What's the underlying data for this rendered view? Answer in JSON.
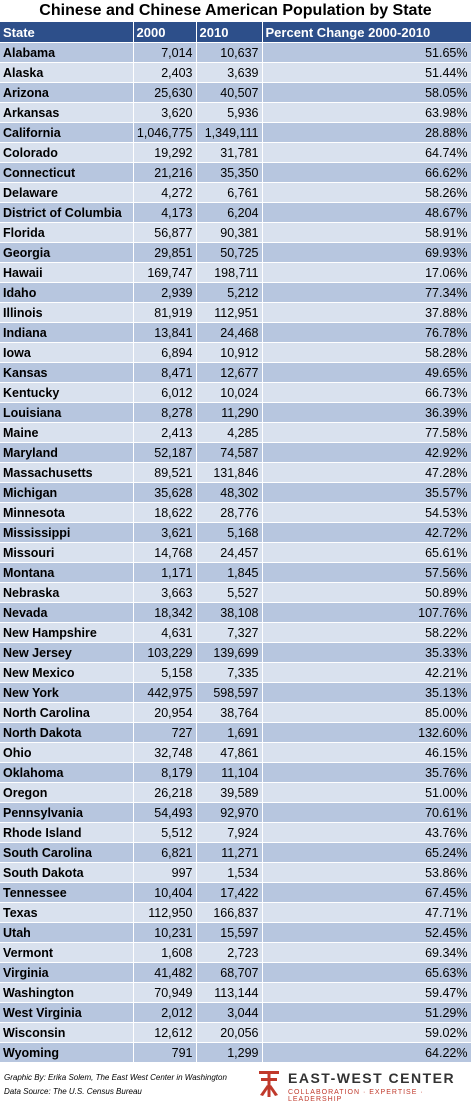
{
  "chart_data": {
    "type": "table",
    "title": "Chinese and Chinese American Population by State",
    "columns": [
      "State",
      "2000",
      "2010",
      "Percent Change 2000-2010"
    ],
    "rows": [
      [
        "Alabama",
        "7,014",
        "10,637",
        "51.65%"
      ],
      [
        "Alaska",
        "2,403",
        "3,639",
        "51.44%"
      ],
      [
        "Arizona",
        "25,630",
        "40,507",
        "58.05%"
      ],
      [
        "Arkansas",
        "3,620",
        "5,936",
        "63.98%"
      ],
      [
        "California",
        "1,046,775",
        "1,349,111",
        "28.88%"
      ],
      [
        "Colorado",
        "19,292",
        "31,781",
        "64.74%"
      ],
      [
        "Connecticut",
        "21,216",
        "35,350",
        "66.62%"
      ],
      [
        "Delaware",
        "4,272",
        "6,761",
        "58.26%"
      ],
      [
        "District of Columbia",
        "4,173",
        "6,204",
        "48.67%"
      ],
      [
        "Florida",
        "56,877",
        "90,381",
        "58.91%"
      ],
      [
        "Georgia",
        "29,851",
        "50,725",
        "69.93%"
      ],
      [
        "Hawaii",
        "169,747",
        "198,711",
        "17.06%"
      ],
      [
        "Idaho",
        "2,939",
        "5,212",
        "77.34%"
      ],
      [
        "Illinois",
        "81,919",
        "112,951",
        "37.88%"
      ],
      [
        "Indiana",
        "13,841",
        "24,468",
        "76.78%"
      ],
      [
        "Iowa",
        "6,894",
        "10,912",
        "58.28%"
      ],
      [
        "Kansas",
        "8,471",
        "12,677",
        "49.65%"
      ],
      [
        "Kentucky",
        "6,012",
        "10,024",
        "66.73%"
      ],
      [
        "Louisiana",
        "8,278",
        "11,290",
        "36.39%"
      ],
      [
        "Maine",
        "2,413",
        "4,285",
        "77.58%"
      ],
      [
        "Maryland",
        "52,187",
        "74,587",
        "42.92%"
      ],
      [
        "Massachusetts",
        "89,521",
        "131,846",
        "47.28%"
      ],
      [
        "Michigan",
        "35,628",
        "48,302",
        "35.57%"
      ],
      [
        "Minnesota",
        "18,622",
        "28,776",
        "54.53%"
      ],
      [
        "Mississippi",
        "3,621",
        "5,168",
        "42.72%"
      ],
      [
        "Missouri",
        "14,768",
        "24,457",
        "65.61%"
      ],
      [
        "Montana",
        "1,171",
        "1,845",
        "57.56%"
      ],
      [
        "Nebraska",
        "3,663",
        "5,527",
        "50.89%"
      ],
      [
        "Nevada",
        "18,342",
        "38,108",
        "107.76%"
      ],
      [
        "New Hampshire",
        "4,631",
        "7,327",
        "58.22%"
      ],
      [
        "New Jersey",
        "103,229",
        "139,699",
        "35.33%"
      ],
      [
        "New Mexico",
        "5,158",
        "7,335",
        "42.21%"
      ],
      [
        "New York",
        "442,975",
        "598,597",
        "35.13%"
      ],
      [
        "North Carolina",
        "20,954",
        "38,764",
        "85.00%"
      ],
      [
        "North Dakota",
        "727",
        "1,691",
        "132.60%"
      ],
      [
        "Ohio",
        "32,748",
        "47,861",
        "46.15%"
      ],
      [
        "Oklahoma",
        "8,179",
        "11,104",
        "35.76%"
      ],
      [
        "Oregon",
        "26,218",
        "39,589",
        "51.00%"
      ],
      [
        "Pennsylvania",
        "54,493",
        "92,970",
        "70.61%"
      ],
      [
        "Rhode Island",
        "5,512",
        "7,924",
        "43.76%"
      ],
      [
        "South Carolina",
        "6,821",
        "11,271",
        "65.24%"
      ],
      [
        "South Dakota",
        "997",
        "1,534",
        "53.86%"
      ],
      [
        "Tennessee",
        "10,404",
        "17,422",
        "67.45%"
      ],
      [
        "Texas",
        "112,950",
        "166,837",
        "47.71%"
      ],
      [
        "Utah",
        "10,231",
        "15,597",
        "52.45%"
      ],
      [
        "Vermont",
        "1,608",
        "2,723",
        "69.34%"
      ],
      [
        "Virginia",
        "41,482",
        "68,707",
        "65.63%"
      ],
      [
        "Washington",
        "70,949",
        "113,144",
        "59.47%"
      ],
      [
        "West Virginia",
        "2,012",
        "3,044",
        "51.29%"
      ],
      [
        "Wisconsin",
        "12,612",
        "20,056",
        "59.02%"
      ],
      [
        "Wyoming",
        "791",
        "1,299",
        "64.22%"
      ]
    ]
  },
  "footer": {
    "credit_line": "Graphic By: Erika Solem, The East West Center in Washington",
    "source_line": "Data Source: The U.S. Census Bureau",
    "brand_name": "EAST-WEST CENTER",
    "brand_tagline": "COLLABORATION · EXPERTISE · LEADERSHIP",
    "logo_icon": "east-west-center-logo-icon"
  },
  "colors": {
    "header_bg": "#2d4f8a",
    "row_odd": "#b7c6df",
    "row_even": "#d9e1ee",
    "logo_red": "#c0392b"
  }
}
